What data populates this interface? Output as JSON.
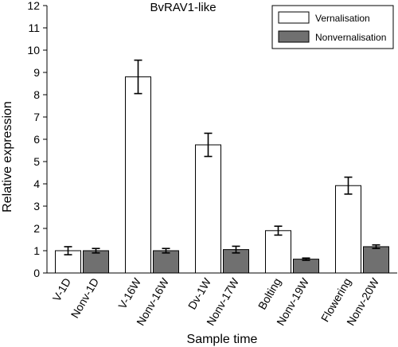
{
  "chart_data": {
    "type": "bar",
    "title": "BvRAV1-like",
    "xlabel": "Sample time",
    "ylabel": "Relative expression",
    "ylim": [
      0,
      12
    ],
    "yticks": [
      0,
      1,
      2,
      3,
      4,
      5,
      6,
      7,
      8,
      9,
      10,
      11,
      12
    ],
    "grid": false,
    "legend_position": "top-right",
    "groups": [
      {
        "bars": [
          {
            "label": "V-1D",
            "series": "Vernalisation",
            "value": 1.0,
            "error": 0.18
          },
          {
            "label": "Nonv-1D",
            "series": "Nonvernalisation",
            "value": 1.0,
            "error": 0.1
          }
        ]
      },
      {
        "bars": [
          {
            "label": "V-16W",
            "series": "Vernalisation",
            "value": 8.8,
            "error": 0.75
          },
          {
            "label": "Nonv-16W",
            "series": "Nonvernalisation",
            "value": 1.0,
            "error": 0.1
          }
        ]
      },
      {
        "bars": [
          {
            "label": "Dv-1W",
            "series": "Vernalisation",
            "value": 5.75,
            "error": 0.52
          },
          {
            "label": "Nonv-17W",
            "series": "Nonvernalisation",
            "value": 1.05,
            "error": 0.15
          }
        ]
      },
      {
        "bars": [
          {
            "label": "Bolting",
            "series": "Vernalisation",
            "value": 1.9,
            "error": 0.2
          },
          {
            "label": "Nonv-19W",
            "series": "Nonvernalisation",
            "value": 0.62,
            "error": 0.05
          }
        ]
      },
      {
        "bars": [
          {
            "label": "Flowering",
            "series": "Vernalisation",
            "value": 3.92,
            "error": 0.38
          },
          {
            "label": "Nonv-20W",
            "series": "Nonvernalisation",
            "value": 1.18,
            "error": 0.08
          }
        ]
      }
    ],
    "series": [
      {
        "name": "Vernalisation",
        "color": "#ffffff"
      },
      {
        "name": "Nonvernalisation",
        "color": "#707070"
      }
    ]
  }
}
